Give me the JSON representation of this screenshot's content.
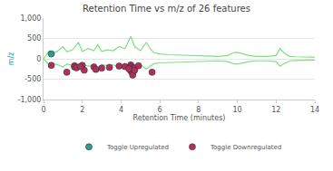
{
  "chart_data": {
    "type": "scatter",
    "title": "Retention Time vs m/z of 26 features",
    "x_label": "Retention Time (minutes)",
    "y_label": "m/z",
    "xlim": [
      0,
      14
    ],
    "xticks": [
      0,
      2,
      4,
      6,
      8,
      10,
      12,
      14
    ],
    "ylim": [
      -1000,
      1000
    ],
    "yticks": [
      {
        "value": -1000,
        "label": "-1,000"
      },
      -500,
      0,
      500,
      {
        "value": 1000,
        "label": "1,000"
      }
    ],
    "grid": true,
    "legend": "bottom",
    "series": [
      {
        "type": "line",
        "color": "#7ee07e",
        "x": [
          0,
          0.3,
          0.5,
          0.7,
          1.0,
          1.2,
          1.5,
          1.8,
          2.0,
          2.3,
          2.6,
          2.8,
          3.0,
          3.3,
          3.6,
          3.9,
          4.2,
          4.5,
          4.7,
          5.0,
          5.3,
          5.5,
          5.7,
          6.0,
          6.5,
          7.0,
          7.5,
          8.0,
          8.5,
          9.0,
          9.5,
          9.8,
          10.0,
          10.3,
          10.6,
          11.0,
          11.5,
          12.0,
          12.2,
          12.4,
          12.7,
          13.0,
          13.5,
          14
        ],
        "values": [
          0,
          200,
          150,
          180,
          300,
          170,
          220,
          400,
          180,
          250,
          200,
          350,
          180,
          220,
          200,
          300,
          250,
          550,
          300,
          200,
          400,
          250,
          150,
          120,
          100,
          90,
          80,
          70,
          60,
          60,
          80,
          150,
          160,
          120,
          80,
          60,
          60,
          80,
          250,
          150,
          60,
          50,
          40,
          40
        ]
      },
      {
        "type": "line",
        "color": "#7ee07e",
        "x": [
          0,
          0.3,
          0.5,
          0.7,
          1.0,
          1.2,
          1.5,
          1.8,
          2.0,
          2.3,
          2.6,
          2.8,
          3.0,
          3.3,
          3.6,
          3.9,
          4.2,
          4.5,
          4.7,
          5.0,
          5.3,
          5.5,
          5.7,
          6.0,
          6.5,
          7.0,
          7.5,
          8.0,
          8.5,
          9.0,
          9.5,
          9.8,
          10.0,
          10.3,
          10.6,
          11.0,
          11.5,
          12.0,
          12.2,
          12.4,
          12.7,
          13.0,
          13.5,
          14
        ],
        "values": [
          0,
          -150,
          -120,
          -140,
          -200,
          -130,
          -160,
          -250,
          -140,
          -180,
          -160,
          -220,
          -140,
          -170,
          -150,
          -200,
          -180,
          -300,
          -200,
          -150,
          -250,
          -180,
          -120,
          -100,
          -90,
          -80,
          -70,
          -60,
          -50,
          -50,
          -70,
          -120,
          -130,
          -100,
          -70,
          -50,
          -50,
          -70,
          -180,
          -120,
          -50,
          -40,
          -30,
          -30
        ]
      },
      {
        "name": "Toggle Upregulated",
        "type": "scatter",
        "color": "#2a9d8f",
        "marker": "circle",
        "x": [
          0.4
        ],
        "values": [
          120
        ]
      },
      {
        "name": "Toggle Downregulated",
        "type": "scatter",
        "color": "#b0305c",
        "marker": "circle",
        "x": [
          0.4,
          1.2,
          1.6,
          1.6,
          1.7,
          2.0,
          2.1,
          2.6,
          2.7,
          3.0,
          3.9,
          4.2,
          4.5,
          4.5,
          4.5,
          4.5,
          4.6,
          4.6,
          4.7,
          4.7,
          4.9,
          5.6,
          1.9,
          3.4,
          4.4
        ],
        "values": [
          -160,
          -330,
          -170,
          -200,
          -220,
          -160,
          -280,
          -200,
          -260,
          -230,
          -180,
          -190,
          -150,
          -200,
          -250,
          -300,
          -350,
          -400,
          -220,
          -280,
          -170,
          -330,
          -190,
          -210,
          -240
        ]
      }
    ]
  }
}
